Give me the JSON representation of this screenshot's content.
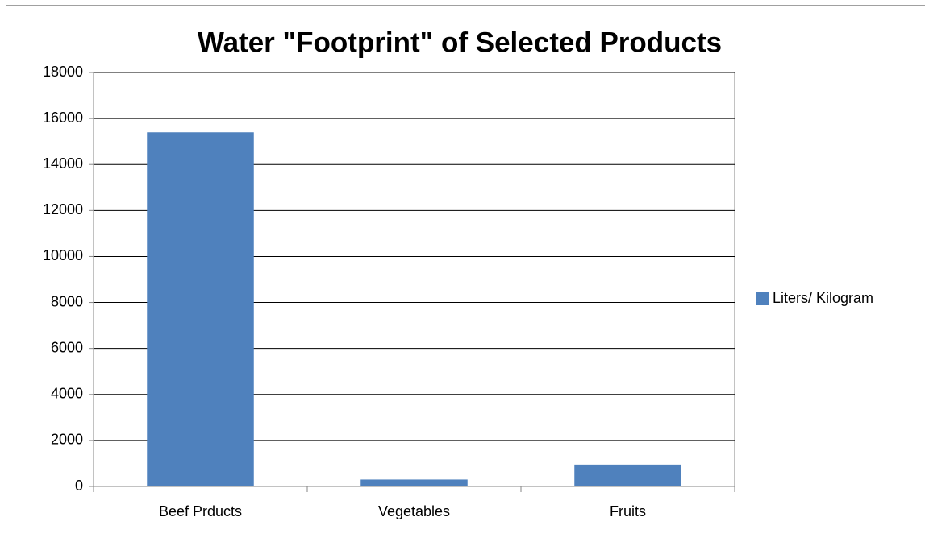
{
  "chart_data": {
    "type": "bar",
    "title": "Water \"Footprint\" of Selected Products",
    "categories": [
      "Beef Prducts",
      "Vegetables",
      "Fruits"
    ],
    "series": [
      {
        "name": "Liters/ Kilogram",
        "color": "#4f81bd",
        "values": [
          15400,
          300,
          950
        ]
      }
    ],
    "ylim": [
      0,
      18000
    ],
    "yticks": [
      0,
      2000,
      4000,
      6000,
      8000,
      10000,
      12000,
      14000,
      16000,
      18000
    ],
    "grid": true,
    "legend": "right"
  }
}
